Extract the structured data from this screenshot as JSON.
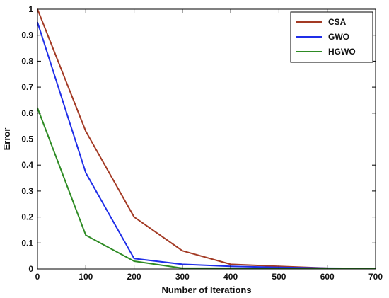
{
  "chart_data": {
    "type": "line",
    "title": "",
    "xlabel": "Number of Iterations",
    "ylabel": "Error",
    "xlim": [
      0,
      700
    ],
    "ylim": [
      0,
      1
    ],
    "xticks": [
      0,
      100,
      200,
      300,
      400,
      500,
      600,
      700
    ],
    "yticks": [
      0,
      0.1,
      0.2,
      0.3,
      0.4,
      0.5,
      0.6,
      0.7,
      0.8,
      0.9,
      1
    ],
    "grid": false,
    "legend_position": "top-right",
    "x": [
      0,
      100,
      200,
      300,
      400,
      500,
      600,
      700
    ],
    "series": [
      {
        "name": "CSA",
        "color": "#a33a24",
        "values": [
          1.0,
          0.53,
          0.2,
          0.07,
          0.018,
          0.01,
          0.003,
          0.002
        ]
      },
      {
        "name": "GWO",
        "color": "#1f2ee8",
        "values": [
          0.95,
          0.37,
          0.04,
          0.018,
          0.01,
          0.006,
          0.003,
          0.002
        ]
      },
      {
        "name": "HGWO",
        "color": "#2e8b24",
        "values": [
          0.62,
          0.13,
          0.03,
          0.003,
          0.003,
          0.002,
          0.002,
          0.002
        ]
      }
    ]
  }
}
